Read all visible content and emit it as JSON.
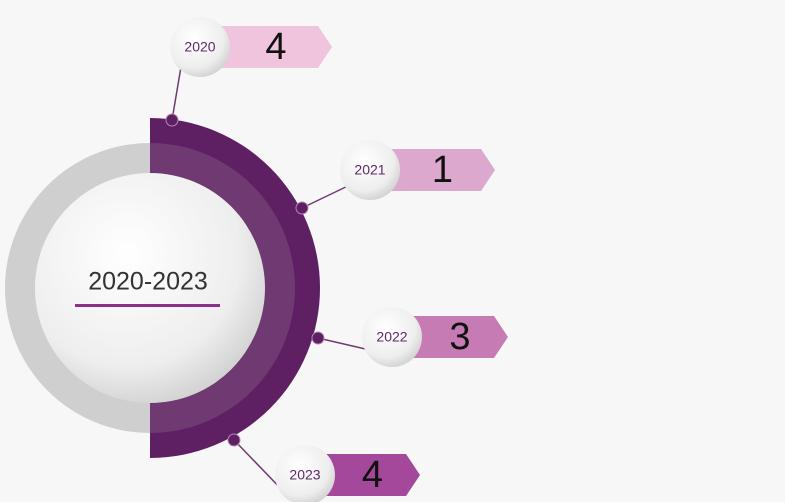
{
  "title": "2020-2023",
  "items": [
    {
      "year": "2020",
      "value": 4
    },
    {
      "year": "2021",
      "value": 1
    },
    {
      "year": "2022",
      "value": 3
    },
    {
      "year": "2023",
      "value": 4
    }
  ]
}
